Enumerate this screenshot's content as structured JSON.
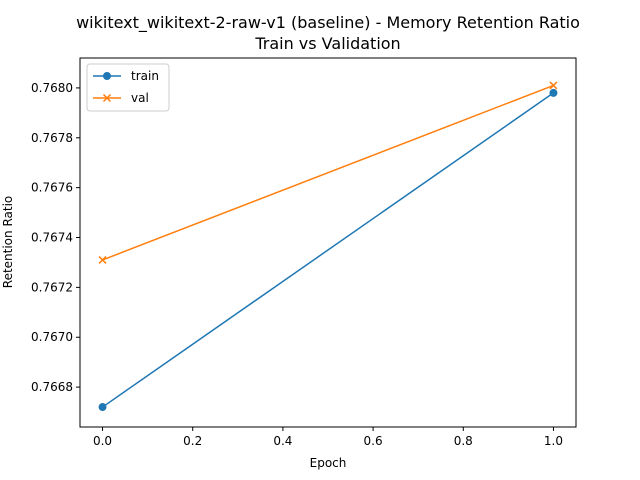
{
  "chart_data": {
    "type": "line",
    "title": "wikitext_wikitext-2-raw-v1 (baseline) - Memory Retention Ratio",
    "subtitle": "Train vs Validation",
    "xlabel": "Epoch",
    "ylabel": "Retention Ratio",
    "xlim": [
      -0.05,
      1.05
    ],
    "ylim": [
      0.76664,
      0.76812
    ],
    "x_ticks": [
      0.0,
      0.2,
      0.4,
      0.6,
      0.8,
      1.0
    ],
    "x_tick_labels": [
      "0.0",
      "0.2",
      "0.4",
      "0.6",
      "0.8",
      "1.0"
    ],
    "y_ticks": [
      0.7668,
      0.767,
      0.7672,
      0.7674,
      0.7676,
      0.7678,
      0.768
    ],
    "y_tick_labels": [
      "0.7668",
      "0.7670",
      "0.7672",
      "0.7674",
      "0.7676",
      "0.7678",
      "0.7680"
    ],
    "grid": false,
    "legend_position": "top-left",
    "series": [
      {
        "name": "train",
        "color": "#1f77b4",
        "marker": "circle",
        "x": [
          0,
          1
        ],
        "y": [
          0.76672,
          0.76798
        ]
      },
      {
        "name": "val",
        "color": "#ff7f0e",
        "marker": "x",
        "x": [
          0,
          1
        ],
        "y": [
          0.76731,
          0.76801
        ]
      }
    ]
  }
}
